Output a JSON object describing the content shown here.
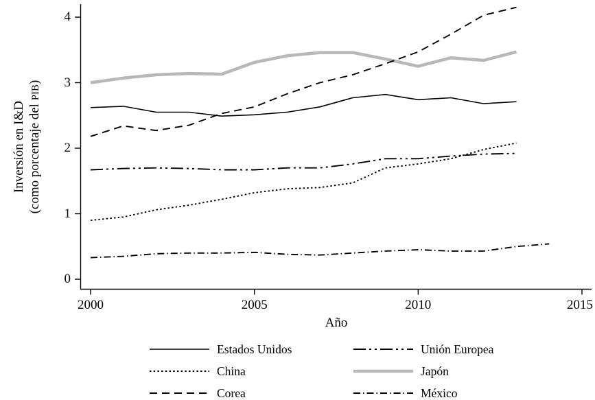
{
  "chart_data": {
    "type": "line",
    "title": "",
    "xlabel": "Año",
    "ylabel_line1": "Inversión en I&D",
    "ylabel_line2_prefix": "(como porcentaje del ",
    "ylabel_acronym": "PIB",
    "ylabel_suffix": ")",
    "xlim": [
      2000,
      2015
    ],
    "ylim": [
      0,
      4
    ],
    "grid": false,
    "legend_position": "bottom-two-columns",
    "x_tick_labels": [
      "2000",
      "2005",
      "2010",
      "2015"
    ],
    "y_tick_labels": [
      "0",
      "1",
      "2",
      "3",
      "4"
    ],
    "x": [
      2000,
      2001,
      2002,
      2003,
      2004,
      2005,
      2006,
      2007,
      2008,
      2009,
      2010,
      2011,
      2012,
      2013,
      2014
    ],
    "series": [
      {
        "name": "Estados Unidos",
        "style": "solid",
        "color": "#000000",
        "width": 1.6,
        "values": [
          2.62,
          2.64,
          2.55,
          2.55,
          2.49,
          2.51,
          2.55,
          2.63,
          2.77,
          2.82,
          2.74,
          2.77,
          2.68,
          2.71,
          null
        ]
      },
      {
        "name": "China",
        "style": "dotted",
        "color": "#000000",
        "width": 1.9,
        "values": [
          0.9,
          0.95,
          1.06,
          1.13,
          1.22,
          1.32,
          1.38,
          1.4,
          1.47,
          1.7,
          1.76,
          1.84,
          1.98,
          2.08,
          null
        ]
      },
      {
        "name": "Corea",
        "style": "dashed",
        "color": "#000000",
        "width": 1.9,
        "values": [
          2.18,
          2.34,
          2.27,
          2.35,
          2.53,
          2.63,
          2.83,
          3.0,
          3.12,
          3.29,
          3.47,
          3.74,
          4.03,
          4.15,
          null
        ]
      },
      {
        "name": "Unión Europea",
        "style": "long-dash-dot-dot",
        "color": "#000000",
        "width": 1.9,
        "values": [
          1.67,
          1.69,
          1.7,
          1.69,
          1.67,
          1.67,
          1.7,
          1.7,
          1.76,
          1.84,
          1.84,
          1.88,
          1.91,
          1.92,
          null
        ]
      },
      {
        "name": "Japón",
        "style": "solid",
        "color": "#b8b8b8",
        "width": 4.5,
        "values": [
          3.0,
          3.07,
          3.12,
          3.14,
          3.13,
          3.31,
          3.41,
          3.46,
          3.46,
          3.36,
          3.25,
          3.38,
          3.34,
          3.47,
          null
        ]
      },
      {
        "name": "México",
        "style": "dash-dot",
        "color": "#000000",
        "width": 1.9,
        "values": [
          0.33,
          0.35,
          0.39,
          0.4,
          0.4,
          0.41,
          0.38,
          0.37,
          0.4,
          0.43,
          0.45,
          0.43,
          0.43,
          0.5,
          0.54
        ]
      }
    ]
  }
}
